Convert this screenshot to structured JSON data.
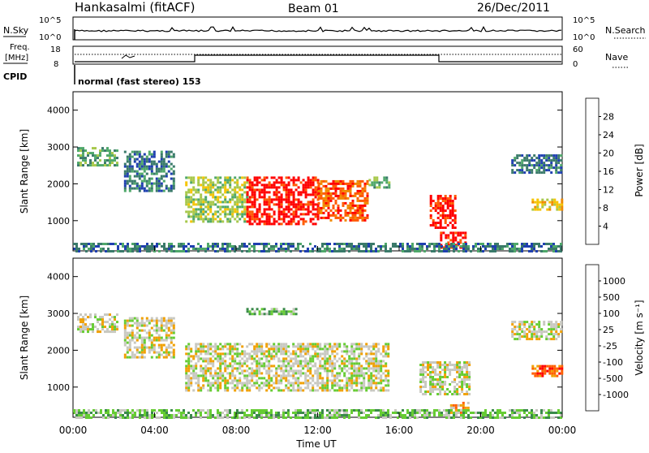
{
  "header": {
    "station": "Hankasalmi (fitACF)",
    "beam": "Beam 01",
    "date": "26/Dec/2011"
  },
  "noise_panel": {
    "left_label": "N.Sky",
    "right_label": "N.Search",
    "left_ticks": [
      "10^5",
      "10^0"
    ],
    "right_ticks": [
      "10^5",
      "10^0"
    ]
  },
  "freq_panel": {
    "left_label_line1": "Freq.",
    "left_label_line2": "[MHz]",
    "cpid_label": "CPID",
    "left_ticks": [
      "18",
      "8"
    ],
    "right_ticks": [
      "60",
      "0"
    ],
    "right_label": "Nave",
    "mode_text": "normal (fast stereo) 153"
  },
  "chart_data": [
    {
      "type": "heatmap",
      "name": "power",
      "ylabel": "Slant Range [km]",
      "ylim": [
        180,
        4500
      ],
      "yticks": [
        "4000",
        "3000",
        "2000",
        "1000"
      ],
      "xlim": [
        0,
        24
      ],
      "colorbar": {
        "label": "Power [dB]",
        "ticks": [
          "28",
          "24",
          "20",
          "16",
          "12",
          "8",
          "4"
        ],
        "colors": [
          "#0000ff",
          "#1f3fb0",
          "#3a7a6a",
          "#4fa86a",
          "#a7c84b",
          "#f5c400",
          "#f08a00",
          "#ff5a00",
          "#ff0000"
        ]
      },
      "regions": [
        {
          "t0": 0.2,
          "t1": 2.2,
          "r0": 2500,
          "r1": 3000,
          "level": 3
        },
        {
          "t0": 2.5,
          "t1": 5.0,
          "r0": 1800,
          "r1": 2900,
          "level": 2
        },
        {
          "t0": 5.5,
          "t1": 8.5,
          "r0": 1000,
          "r1": 2200,
          "level": 4
        },
        {
          "t0": 8.5,
          "t1": 12.0,
          "r0": 900,
          "r1": 2200,
          "level": 8
        },
        {
          "t0": 12.0,
          "t1": 14.5,
          "r0": 1000,
          "r1": 2100,
          "level": 7
        },
        {
          "t0": 14.5,
          "t1": 15.5,
          "r0": 1900,
          "r1": 2200,
          "level": 3
        },
        {
          "t0": 17.5,
          "t1": 18.8,
          "r0": 800,
          "r1": 1700,
          "level": 8
        },
        {
          "t0": 18.0,
          "t1": 19.3,
          "r0": 300,
          "r1": 700,
          "level": 8
        },
        {
          "t0": 21.5,
          "t1": 24.0,
          "r0": 2300,
          "r1": 2800,
          "level": 2
        },
        {
          "t0": 22.5,
          "t1": 24.0,
          "r0": 1300,
          "r1": 1600,
          "level": 5
        },
        {
          "t0": 0.0,
          "t1": 24.0,
          "r0": 200,
          "r1": 400,
          "level": 2
        }
      ]
    },
    {
      "type": "heatmap",
      "name": "velocity",
      "ylabel": "Slant Range [km]",
      "ylim": [
        180,
        4500
      ],
      "yticks": [
        "4000",
        "3000",
        "2000",
        "1000"
      ],
      "xlim": [
        0,
        24
      ],
      "xticks": [
        "00:00",
        "04:00",
        "08:00",
        "12:00",
        "16:00",
        "20:00",
        "00:00"
      ],
      "xlabel": "Time UT",
      "colorbar": {
        "label": "Velocity [m s⁻¹]",
        "ticks": [
          "1000",
          "500",
          "100",
          "25",
          "-25",
          "-100",
          "-500",
          "-1000"
        ],
        "colors": [
          "#2040c0",
          "#2a6ab0",
          "#3a8a4a",
          "#66cc33",
          "#c8c8c0",
          "#f0a000",
          "#ff6000",
          "#ff0000"
        ]
      },
      "regions": [
        {
          "t0": 0.2,
          "t1": 2.2,
          "r0": 2500,
          "r1": 3000,
          "level": 4
        },
        {
          "t0": 2.5,
          "t1": 5.0,
          "r0": 1800,
          "r1": 2900,
          "level": 4
        },
        {
          "t0": 5.5,
          "t1": 15.5,
          "r0": 900,
          "r1": 2200,
          "level": 4
        },
        {
          "t0": 8.5,
          "t1": 11.0,
          "r0": 3000,
          "r1": 3150,
          "level": 3
        },
        {
          "t0": 17.0,
          "t1": 19.5,
          "r0": 800,
          "r1": 1700,
          "level": 4
        },
        {
          "t0": 18.5,
          "t1": 19.4,
          "r0": 300,
          "r1": 600,
          "level": 5
        },
        {
          "t0": 21.5,
          "t1": 24.0,
          "r0": 2300,
          "r1": 2800,
          "level": 4
        },
        {
          "t0": 22.5,
          "t1": 24.0,
          "r0": 1300,
          "r1": 1600,
          "level": 6
        },
        {
          "t0": 0.0,
          "t1": 24.0,
          "r0": 200,
          "r1": 400,
          "level": 3
        }
      ]
    }
  ]
}
